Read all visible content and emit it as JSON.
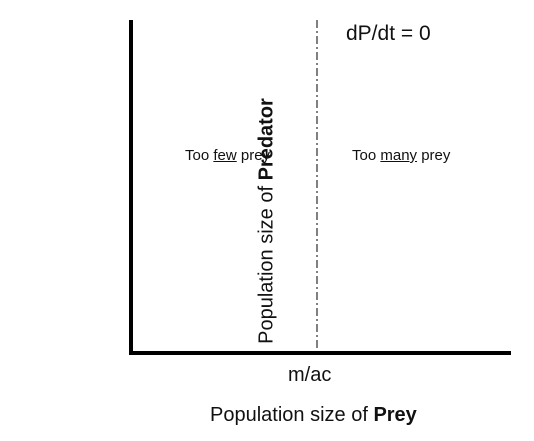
{
  "nullcline": {
    "label": "dP/dt = 0"
  },
  "regions": {
    "left": {
      "before": "Too ",
      "emph": "few",
      "after": " prey"
    },
    "right": {
      "before": "Too ",
      "emph": "many",
      "after": " prey"
    }
  },
  "x_axis": {
    "title_prefix": "Population size of ",
    "title_bold": "Prey",
    "tick_label": "m/ac"
  },
  "y_axis": {
    "title_prefix": "Population size of ",
    "title_bold": "Predator"
  },
  "colors": {
    "axis": "#000000",
    "text": "#111111",
    "background": "#ffffff"
  }
}
